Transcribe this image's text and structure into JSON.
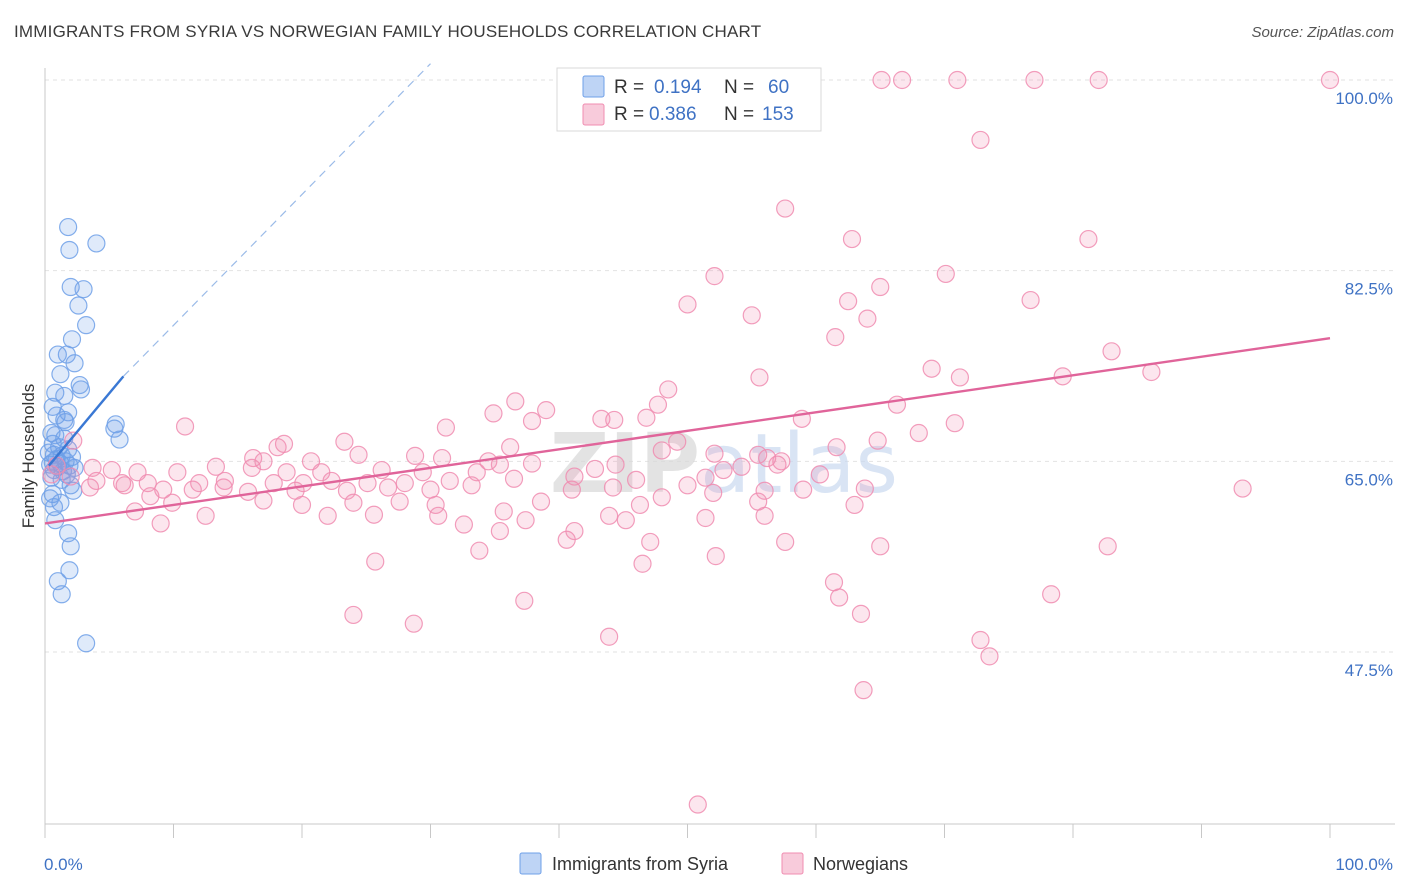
{
  "title": "IMMIGRANTS FROM SYRIA VS NORWEGIAN FAMILY HOUSEHOLDS CORRELATION CHART",
  "source": "Source: ZipAtlas.com",
  "watermark": "ZIPatlas",
  "legend": {
    "r_label": "R =",
    "n_label": "N =",
    "rows": [
      {
        "r": "0.194",
        "n": "60",
        "color": "#6fa0e8"
      },
      {
        "r": "0.386",
        "n": "153",
        "color": "#f08cb0"
      }
    ]
  },
  "bottom_legend": [
    {
      "label": "Immigrants from Syria",
      "color": "#6fa0e8"
    },
    {
      "label": "Norwegians",
      "color": "#f08cb0"
    }
  ],
  "chart_data": {
    "type": "scatter",
    "title": "IMMIGRANTS FROM SYRIA VS NORWEGIAN FAMILY HOUSEHOLDS CORRELATION CHART",
    "xlabel": "",
    "ylabel": "Family Households",
    "xlim": [
      0,
      100
    ],
    "ylim": [
      30,
      102
    ],
    "x_tick_labels": [
      "0.0%",
      "100.0%"
    ],
    "y_ticks": [
      47.5,
      65.0,
      82.5,
      100.0
    ],
    "y_tick_labels": [
      "47.5%",
      "65.0%",
      "82.5%",
      "100.0%"
    ],
    "grid": true,
    "legend_position": "top-center",
    "series": [
      {
        "name": "Immigrants from Syria",
        "color": "#6fa0e8",
        "trend": {
          "x0": 0.3,
          "y0": 64.6,
          "x1": 6.1,
          "y1": 72.8,
          "dash_to_x": 30.0,
          "dash_to_y": 101.5
        },
        "points": [
          [
            1.8,
            86.5
          ],
          [
            1.9,
            84.4
          ],
          [
            4.0,
            85.0
          ],
          [
            2.0,
            81.0
          ],
          [
            3.0,
            80.8
          ],
          [
            2.6,
            79.3
          ],
          [
            3.2,
            77.5
          ],
          [
            2.1,
            76.2
          ],
          [
            1.0,
            74.8
          ],
          [
            1.7,
            74.8
          ],
          [
            2.3,
            74.0
          ],
          [
            1.2,
            73.0
          ],
          [
            2.7,
            72.0
          ],
          [
            2.8,
            71.6
          ],
          [
            0.8,
            71.3
          ],
          [
            1.5,
            71.0
          ],
          [
            0.6,
            70.0
          ],
          [
            1.8,
            69.5
          ],
          [
            0.9,
            69.2
          ],
          [
            1.5,
            68.8
          ],
          [
            1.6,
            68.6
          ],
          [
            5.5,
            68.4
          ],
          [
            5.4,
            68.0
          ],
          [
            0.5,
            67.6
          ],
          [
            0.8,
            67.4
          ],
          [
            1.5,
            67.1
          ],
          [
            5.8,
            67.0
          ],
          [
            0.6,
            66.6
          ],
          [
            1.1,
            66.3
          ],
          [
            1.8,
            66.1
          ],
          [
            0.3,
            65.8
          ],
          [
            0.7,
            65.6
          ],
          [
            1.3,
            65.5
          ],
          [
            2.1,
            65.4
          ],
          [
            0.9,
            65.2
          ],
          [
            1.6,
            65.0
          ],
          [
            0.6,
            64.9
          ],
          [
            1.2,
            64.8
          ],
          [
            0.4,
            64.7
          ],
          [
            1.9,
            64.6
          ],
          [
            1.0,
            64.5
          ],
          [
            2.3,
            64.4
          ],
          [
            0.7,
            64.2
          ],
          [
            1.4,
            64.1
          ],
          [
            1.7,
            63.8
          ],
          [
            0.5,
            63.5
          ],
          [
            1.3,
            63.3
          ],
          [
            2.0,
            62.8
          ],
          [
            2.2,
            62.3
          ],
          [
            0.6,
            62.0
          ],
          [
            0.4,
            61.6
          ],
          [
            1.2,
            61.2
          ],
          [
            0.7,
            60.8
          ],
          [
            0.8,
            59.6
          ],
          [
            1.8,
            58.4
          ],
          [
            2.0,
            57.2
          ],
          [
            1.9,
            55.0
          ],
          [
            1.0,
            54.0
          ],
          [
            1.3,
            52.8
          ],
          [
            3.2,
            48.3
          ]
        ]
      },
      {
        "name": "Norwegians",
        "color": "#f08cb0",
        "trend": {
          "x0": 0.0,
          "y0": 59.3,
          "x1": 100.0,
          "y1": 76.3
        },
        "points": [
          [
            65.1,
            100.0
          ],
          [
            66.7,
            100.0
          ],
          [
            71.0,
            100.0
          ],
          [
            77.0,
            100.0
          ],
          [
            82.0,
            100.0
          ],
          [
            100.0,
            100.0
          ],
          [
            72.8,
            94.5
          ],
          [
            57.6,
            88.2
          ],
          [
            62.8,
            85.4
          ],
          [
            81.2,
            85.4
          ],
          [
            52.1,
            82.0
          ],
          [
            70.1,
            82.2
          ],
          [
            65.0,
            81.0
          ],
          [
            62.5,
            79.7
          ],
          [
            76.7,
            79.8
          ],
          [
            50.0,
            79.4
          ],
          [
            55.0,
            78.4
          ],
          [
            64.0,
            78.1
          ],
          [
            61.5,
            76.4
          ],
          [
            83.0,
            75.1
          ],
          [
            69.0,
            73.5
          ],
          [
            86.1,
            73.2
          ],
          [
            55.6,
            72.7
          ],
          [
            71.2,
            72.7
          ],
          [
            79.2,
            72.8
          ],
          [
            48.5,
            71.6
          ],
          [
            36.6,
            70.5
          ],
          [
            47.7,
            70.2
          ],
          [
            66.3,
            70.2
          ],
          [
            34.9,
            69.4
          ],
          [
            39.0,
            69.7
          ],
          [
            43.3,
            68.9
          ],
          [
            46.8,
            69.0
          ],
          [
            37.9,
            68.7
          ],
          [
            44.3,
            68.8
          ],
          [
            58.9,
            68.9
          ],
          [
            70.8,
            68.5
          ],
          [
            10.9,
            68.2
          ],
          [
            31.2,
            68.1
          ],
          [
            68.0,
            67.6
          ],
          [
            2.2,
            66.9
          ],
          [
            49.2,
            66.8
          ],
          [
            64.8,
            66.9
          ],
          [
            18.6,
            66.6
          ],
          [
            23.3,
            66.8
          ],
          [
            18.1,
            66.3
          ],
          [
            36.2,
            66.3
          ],
          [
            48.0,
            66.0
          ],
          [
            61.6,
            66.3
          ],
          [
            55.5,
            65.6
          ],
          [
            52.1,
            65.7
          ],
          [
            16.2,
            65.3
          ],
          [
            17.0,
            65.0
          ],
          [
            20.7,
            65.0
          ],
          [
            24.4,
            65.6
          ],
          [
            28.8,
            65.5
          ],
          [
            30.9,
            65.3
          ],
          [
            34.5,
            65.0
          ],
          [
            56.2,
            65.3
          ],
          [
            57.3,
            65.0
          ],
          [
            37.9,
            64.8
          ],
          [
            44.4,
            64.7
          ],
          [
            54.2,
            64.5
          ],
          [
            0.9,
            64.6
          ],
          [
            3.7,
            64.4
          ],
          [
            5.2,
            64.2
          ],
          [
            7.2,
            64.0
          ],
          [
            10.3,
            64.0
          ],
          [
            13.3,
            64.5
          ],
          [
            16.1,
            64.4
          ],
          [
            18.8,
            64.0
          ],
          [
            21.5,
            64.0
          ],
          [
            26.2,
            64.2
          ],
          [
            29.4,
            64.0
          ],
          [
            33.6,
            64.0
          ],
          [
            35.4,
            64.7
          ],
          [
            42.8,
            64.3
          ],
          [
            52.8,
            64.2
          ],
          [
            57.0,
            64.7
          ],
          [
            0.5,
            63.8
          ],
          [
            2.0,
            63.6
          ],
          [
            4.0,
            63.2
          ],
          [
            6.0,
            63.0
          ],
          [
            8.0,
            63.0
          ],
          [
            12.0,
            63.0
          ],
          [
            14.0,
            63.2
          ],
          [
            17.8,
            63.0
          ],
          [
            20.1,
            63.0
          ],
          [
            22.3,
            63.2
          ],
          [
            25.1,
            63.0
          ],
          [
            28.0,
            63.0
          ],
          [
            31.5,
            63.2
          ],
          [
            36.5,
            63.4
          ],
          [
            41.2,
            63.6
          ],
          [
            46.0,
            63.3
          ],
          [
            51.4,
            63.5
          ],
          [
            60.3,
            63.8
          ],
          [
            3.5,
            62.6
          ],
          [
            6.2,
            62.8
          ],
          [
            9.2,
            62.4
          ],
          [
            11.5,
            62.4
          ],
          [
            13.9,
            62.6
          ],
          [
            15.8,
            62.2
          ],
          [
            19.5,
            62.3
          ],
          [
            23.5,
            62.3
          ],
          [
            26.7,
            62.6
          ],
          [
            30.0,
            62.4
          ],
          [
            33.2,
            62.8
          ],
          [
            41.0,
            62.4
          ],
          [
            44.2,
            62.6
          ],
          [
            50.0,
            62.8
          ],
          [
            52.0,
            62.1
          ],
          [
            56.0,
            62.3
          ],
          [
            59.0,
            62.4
          ],
          [
            63.8,
            62.5
          ],
          [
            93.2,
            62.5
          ],
          [
            8.2,
            61.8
          ],
          [
            9.9,
            61.2
          ],
          [
            17.0,
            61.4
          ],
          [
            20.0,
            61.0
          ],
          [
            24.0,
            61.2
          ],
          [
            27.6,
            61.3
          ],
          [
            30.4,
            61.0
          ],
          [
            38.6,
            61.3
          ],
          [
            46.3,
            61.0
          ],
          [
            48.0,
            61.7
          ],
          [
            55.5,
            61.3
          ],
          [
            63.0,
            61.0
          ],
          [
            7.0,
            60.4
          ],
          [
            12.5,
            60.0
          ],
          [
            22.0,
            60.0
          ],
          [
            25.6,
            60.1
          ],
          [
            30.6,
            60.0
          ],
          [
            35.7,
            60.4
          ],
          [
            37.4,
            59.6
          ],
          [
            43.9,
            60.0
          ],
          [
            45.2,
            59.6
          ],
          [
            51.4,
            59.8
          ],
          [
            56.0,
            60.0
          ],
          [
            9.0,
            59.3
          ],
          [
            32.6,
            59.2
          ],
          [
            35.4,
            58.6
          ],
          [
            41.2,
            58.6
          ],
          [
            40.6,
            57.8
          ],
          [
            33.8,
            56.8
          ],
          [
            25.7,
            55.8
          ],
          [
            47.1,
            57.6
          ],
          [
            57.6,
            57.6
          ],
          [
            65.0,
            57.2
          ],
          [
            82.7,
            57.2
          ],
          [
            37.3,
            52.2
          ],
          [
            46.5,
            55.6
          ],
          [
            52.2,
            56.3
          ],
          [
            61.4,
            53.9
          ],
          [
            61.8,
            52.5
          ],
          [
            63.5,
            51.0
          ],
          [
            78.3,
            52.8
          ],
          [
            24.0,
            50.9
          ],
          [
            28.7,
            50.1
          ],
          [
            43.9,
            48.9
          ],
          [
            72.8,
            48.6
          ],
          [
            73.5,
            47.1
          ],
          [
            63.7,
            44.0
          ],
          [
            50.8,
            33.5
          ]
        ]
      }
    ]
  }
}
